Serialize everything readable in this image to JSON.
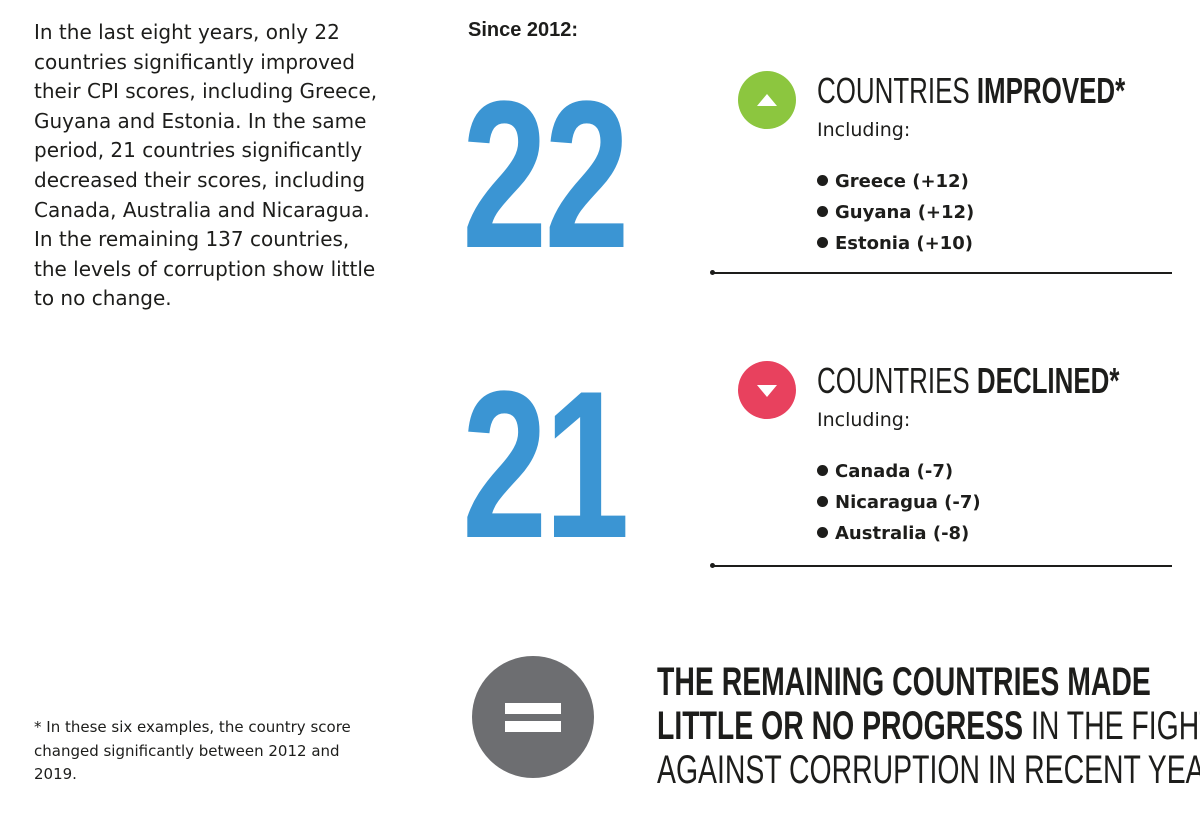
{
  "intro_text": "In the last eight years, only 22 countries significantly improved their CPI scores, including Greece, Guyana and Estonia. In the same period, 21 countries significantly decreased their scores, including Canada, Australia and Nicaragua. In the remaining 137 countries, the levels of corruption show little to no change.",
  "footnote": "* In these six examples, the country score changed significantly between 2012 and 2019.",
  "since_label": "Since 2012:",
  "colors": {
    "number_blue": "#3b95d3",
    "improved_green": "#8cc63f",
    "declined_red": "#e8415e",
    "equal_grey": "#6d6e71"
  },
  "improved": {
    "count": "22",
    "icon": "triangle-up-icon",
    "title_prefix": "COUNTRIES ",
    "title_emphasis": "IMPROVED*",
    "including_label": "Including:",
    "countries": [
      "Greece (+12)",
      "Guyana (+12)",
      "Estonia (+10)"
    ]
  },
  "declined": {
    "count": "21",
    "icon": "triangle-down-icon",
    "title_prefix": "COUNTRIES ",
    "title_emphasis": "DECLINED*",
    "including_label": "Including:",
    "countries": [
      "Canada (-7)",
      "Nicaragua (-7)",
      "Australia (-8)"
    ]
  },
  "remaining": {
    "icon": "equals-icon",
    "line1": "THE REMAINING COUNTRIES MADE",
    "line2_emphasis": "LITTLE OR NO PROGRESS",
    "line2_rest": " IN THE FIGHT",
    "line3": "AGAINST CORRUPTION IN RECENT YEARS"
  }
}
